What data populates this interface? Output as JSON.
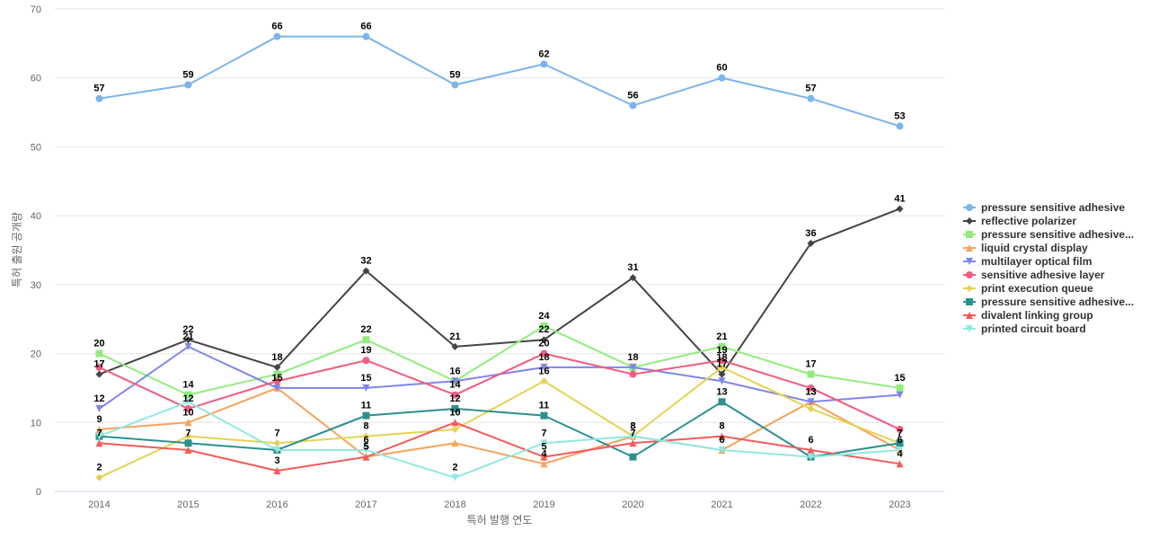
{
  "chart_data": {
    "type": "line",
    "xlabel": "특허 발행 연도",
    "ylabel": "특허 출원 공개량",
    "ylim": [
      0,
      70
    ],
    "yticks": [
      0,
      10,
      20,
      30,
      40,
      50,
      60,
      70
    ],
    "grid": true,
    "legend_position": "right",
    "categories": [
      "2014",
      "2015",
      "2016",
      "2017",
      "2018",
      "2019",
      "2020",
      "2021",
      "2022",
      "2023"
    ],
    "series": [
      {
        "name": "pressure sensitive adhesive",
        "color": "#7cb5ec",
        "marker": "circle",
        "values": [
          57,
          59,
          66,
          66,
          59,
          62,
          56,
          60,
          57,
          53
        ]
      },
      {
        "name": "reflective polarizer",
        "color": "#434348",
        "marker": "diamond",
        "values": [
          17,
          22,
          18,
          32,
          21,
          22,
          31,
          17,
          36,
          41
        ]
      },
      {
        "name": "pressure sensitive adhesive...",
        "color": "#90ed7d",
        "marker": "square",
        "values": [
          20,
          14,
          17,
          22,
          16,
          24,
          18,
          21,
          17,
          15
        ]
      },
      {
        "name": "liquid crystal display",
        "color": "#f7a35c",
        "marker": "triangle",
        "values": [
          9,
          10,
          15,
          5,
          7,
          4,
          8,
          6,
          13,
          6
        ]
      },
      {
        "name": "multilayer optical film",
        "color": "#8085e9",
        "marker": "triangle-down",
        "values": [
          12,
          21,
          15,
          15,
          16,
          18,
          18,
          16,
          13,
          14
        ]
      },
      {
        "name": "sensitive adhesive layer",
        "color": "#f15c80",
        "marker": "circle",
        "values": [
          18,
          12,
          16,
          19,
          14,
          20,
          17,
          19,
          15,
          9
        ]
      },
      {
        "name": "print execution queue",
        "color": "#e4d354",
        "marker": "diamond",
        "values": [
          2,
          8,
          7,
          8,
          9,
          16,
          8,
          18,
          12,
          7
        ]
      },
      {
        "name": "pressure sensitive adhesive...",
        "color": "#2b908f",
        "marker": "square",
        "values": [
          8,
          7,
          6,
          11,
          12,
          11,
          5,
          13,
          5,
          7
        ]
      },
      {
        "name": "divalent linking group",
        "color": "#f45b5b",
        "marker": "triangle",
        "values": [
          7,
          6,
          3,
          5,
          10,
          5,
          7,
          8,
          6,
          4
        ]
      },
      {
        "name": "printed circuit board",
        "color": "#91e8e1",
        "marker": "triangle-down",
        "values": [
          8,
          13,
          6,
          6,
          2,
          7,
          8,
          6,
          5,
          6
        ]
      }
    ],
    "data_labels": [
      {
        "series": 0,
        "indices": [
          0,
          1,
          2,
          3,
          4,
          5,
          6,
          7,
          8,
          9
        ]
      },
      {
        "series": 1,
        "indices": [
          0,
          1,
          2,
          3,
          4,
          5,
          6,
          7,
          8,
          9
        ]
      },
      {
        "series": 2,
        "indices": [
          0,
          1,
          3,
          4,
          5,
          6,
          7,
          8,
          9
        ]
      },
      {
        "series": 3,
        "indices": [
          0,
          1,
          3,
          5,
          6,
          8,
          9
        ]
      },
      {
        "series": 4,
        "indices": [
          0,
          1,
          2,
          3,
          5,
          8
        ]
      },
      {
        "series": 5,
        "indices": [
          1,
          3,
          4,
          5,
          7
        ]
      },
      {
        "series": 6,
        "indices": [
          0,
          2,
          3,
          5,
          7
        ]
      },
      {
        "series": 7,
        "indices": [
          1,
          3,
          4,
          5,
          7,
          9
        ]
      },
      {
        "series": 8,
        "indices": [
          0,
          2,
          3,
          4,
          5,
          6,
          7,
          8,
          9
        ]
      },
      {
        "series": 9,
        "indices": [
          3,
          4,
          5,
          6,
          7
        ]
      }
    ]
  }
}
